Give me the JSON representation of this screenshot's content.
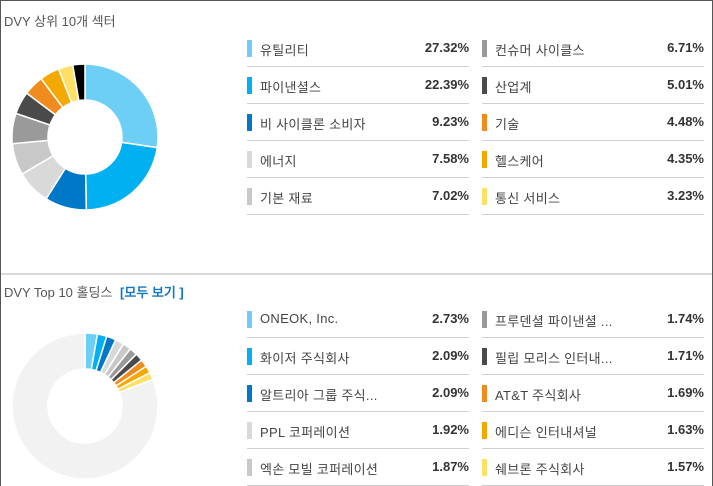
{
  "sectors": {
    "title": "DVY 상위 10개 섹터",
    "items": [
      {
        "name": "유틸리티",
        "pct": "27.32%",
        "value": 27.32,
        "color": "#6dcff6"
      },
      {
        "name": "파이낸셜스",
        "pct": "22.39%",
        "value": 22.39,
        "color": "#00b0f0"
      },
      {
        "name": "비 사이클론 소비자",
        "pct": "9.23%",
        "value": 9.23,
        "color": "#0078c8"
      },
      {
        "name": "에너지",
        "pct": "7.58%",
        "value": 7.58,
        "color": "#d9d9d9"
      },
      {
        "name": "기본 재료",
        "pct": "7.02%",
        "value": 7.02,
        "color": "#c8c8c8"
      },
      {
        "name": "컨슈머 사이클스",
        "pct": "6.71%",
        "value": 6.71,
        "color": "#9a9a9a"
      },
      {
        "name": "산업계",
        "pct": "5.01%",
        "value": 5.01,
        "color": "#4a4a4a"
      },
      {
        "name": "기술",
        "pct": "4.48%",
        "value": 4.48,
        "color": "#f08c1e"
      },
      {
        "name": "헬스케어",
        "pct": "4.35%",
        "value": 4.35,
        "color": "#f5a800"
      },
      {
        "name": "통신 서비스",
        "pct": "3.23%",
        "value": 3.23,
        "color": "#ffe066"
      }
    ]
  },
  "holdings": {
    "title": "DVY Top 10 홀딩스",
    "view_all": "[모두 보기 ]",
    "items": [
      {
        "name": "ONEOK, Inc.",
        "pct": "2.73%",
        "value": 2.73,
        "color": "#6dcff6"
      },
      {
        "name": "화이저 주식회사",
        "pct": "2.09%",
        "value": 2.09,
        "color": "#00b0f0"
      },
      {
        "name": "알트리아 그룹 주식...",
        "pct": "2.09%",
        "value": 2.09,
        "color": "#0078c8"
      },
      {
        "name": "PPL 코퍼레이션",
        "pct": "1.92%",
        "value": 1.92,
        "color": "#d9d9d9"
      },
      {
        "name": "엑손 모빌 코퍼레이션",
        "pct": "1.87%",
        "value": 1.87,
        "color": "#c8c8c8"
      },
      {
        "name": "프루덴셜 파이낸셜 ...",
        "pct": "1.74%",
        "value": 1.74,
        "color": "#9a9a9a"
      },
      {
        "name": "필립 모리스 인터내...",
        "pct": "1.71%",
        "value": 1.71,
        "color": "#4a4a4a"
      },
      {
        "name": "AT&T 주식회사",
        "pct": "1.69%",
        "value": 1.69,
        "color": "#f08c1e"
      },
      {
        "name": "에디슨 인터내셔널",
        "pct": "1.63%",
        "value": 1.63,
        "color": "#f5a800"
      },
      {
        "name": "쉐브론 주식회사",
        "pct": "1.57%",
        "value": 1.57,
        "color": "#ffe066"
      }
    ],
    "other_color": "#f2f2f2"
  }
}
